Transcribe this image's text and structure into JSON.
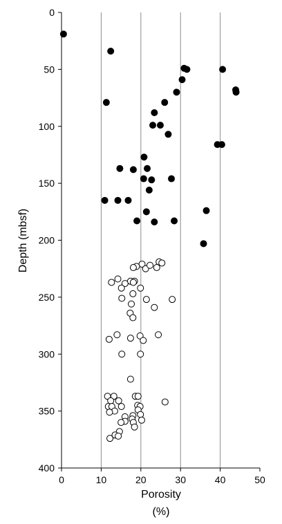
{
  "chart_data": {
    "type": "scatter",
    "xlabel": "Porosity",
    "xlabel_unit": "(%)",
    "ylabel": "Depth (mbsf)",
    "xlim": [
      0,
      50
    ],
    "ylim": [
      0,
      400
    ],
    "y_inverted": true,
    "xticks": [
      0,
      10,
      20,
      30,
      40,
      50
    ],
    "yticks": [
      0,
      50,
      100,
      150,
      200,
      250,
      300,
      350,
      400
    ],
    "vertical_gridlines": [
      10,
      20,
      30,
      40
    ],
    "grid": "vertical",
    "series": [
      {
        "marker": "filled-circle",
        "color": "#000000",
        "points": [
          [
            0.5,
            19
          ],
          [
            12.4,
            34
          ],
          [
            30.9,
            49
          ],
          [
            31.6,
            50
          ],
          [
            40.6,
            50
          ],
          [
            30.4,
            59
          ],
          [
            29.0,
            70
          ],
          [
            43.9,
            68
          ],
          [
            44.0,
            70
          ],
          [
            11.3,
            79
          ],
          [
            26.0,
            79
          ],
          [
            23.4,
            88
          ],
          [
            23.0,
            99
          ],
          [
            24.9,
            99
          ],
          [
            26.9,
            107
          ],
          [
            39.3,
            116
          ],
          [
            40.4,
            116
          ],
          [
            20.8,
            127
          ],
          [
            14.7,
            137
          ],
          [
            18.1,
            138
          ],
          [
            21.6,
            137
          ],
          [
            20.7,
            146
          ],
          [
            22.7,
            147
          ],
          [
            27.7,
            146
          ],
          [
            22.1,
            156
          ],
          [
            10.9,
            165
          ],
          [
            14.2,
            165
          ],
          [
            16.8,
            165
          ],
          [
            21.4,
            175
          ],
          [
            36.5,
            174
          ],
          [
            19.0,
            183
          ],
          [
            23.4,
            184
          ],
          [
            28.4,
            183
          ],
          [
            35.8,
            203
          ]
        ]
      },
      {
        "marker": "open-circle",
        "color": "#000000",
        "points": [
          [
            24.6,
            219
          ],
          [
            25.3,
            220
          ],
          [
            20.3,
            221
          ],
          [
            18.9,
            223
          ],
          [
            21.2,
            225
          ],
          [
            22.3,
            222
          ],
          [
            24.0,
            224
          ],
          [
            18.1,
            224
          ],
          [
            14.2,
            234
          ],
          [
            17.4,
            236
          ],
          [
            18.4,
            236
          ],
          [
            18.1,
            237
          ],
          [
            16.0,
            238
          ],
          [
            12.6,
            237
          ],
          [
            15.1,
            242
          ],
          [
            19.9,
            242
          ],
          [
            18.0,
            247
          ],
          [
            15.2,
            251
          ],
          [
            21.4,
            252
          ],
          [
            27.9,
            252
          ],
          [
            17.6,
            256
          ],
          [
            23.4,
            259
          ],
          [
            17.3,
            264
          ],
          [
            18.0,
            268
          ],
          [
            14.0,
            283
          ],
          [
            19.8,
            284
          ],
          [
            24.4,
            283
          ],
          [
            17.4,
            286
          ],
          [
            12.0,
            287
          ],
          [
            20.6,
            288
          ],
          [
            15.2,
            300
          ],
          [
            19.9,
            300
          ],
          [
            17.4,
            322
          ],
          [
            11.6,
            337
          ],
          [
            13.2,
            337
          ],
          [
            18.6,
            337
          ],
          [
            19.3,
            337
          ],
          [
            12.4,
            341
          ],
          [
            14.4,
            341
          ],
          [
            26.1,
            342
          ],
          [
            11.8,
            346
          ],
          [
            12.7,
            346
          ],
          [
            15.1,
            346
          ],
          [
            19.2,
            345
          ],
          [
            19.8,
            346
          ],
          [
            13.4,
            350
          ],
          [
            19.3,
            349
          ],
          [
            12.1,
            351
          ],
          [
            18.0,
            354
          ],
          [
            19.9,
            353
          ],
          [
            16.0,
            355
          ],
          [
            17.8,
            357
          ],
          [
            20.2,
            358
          ],
          [
            16.0,
            359
          ],
          [
            15.0,
            360
          ],
          [
            18.1,
            360
          ],
          [
            18.4,
            364
          ],
          [
            14.6,
            368
          ],
          [
            13.5,
            371
          ],
          [
            14.3,
            372
          ],
          [
            12.2,
            374
          ]
        ]
      }
    ]
  }
}
